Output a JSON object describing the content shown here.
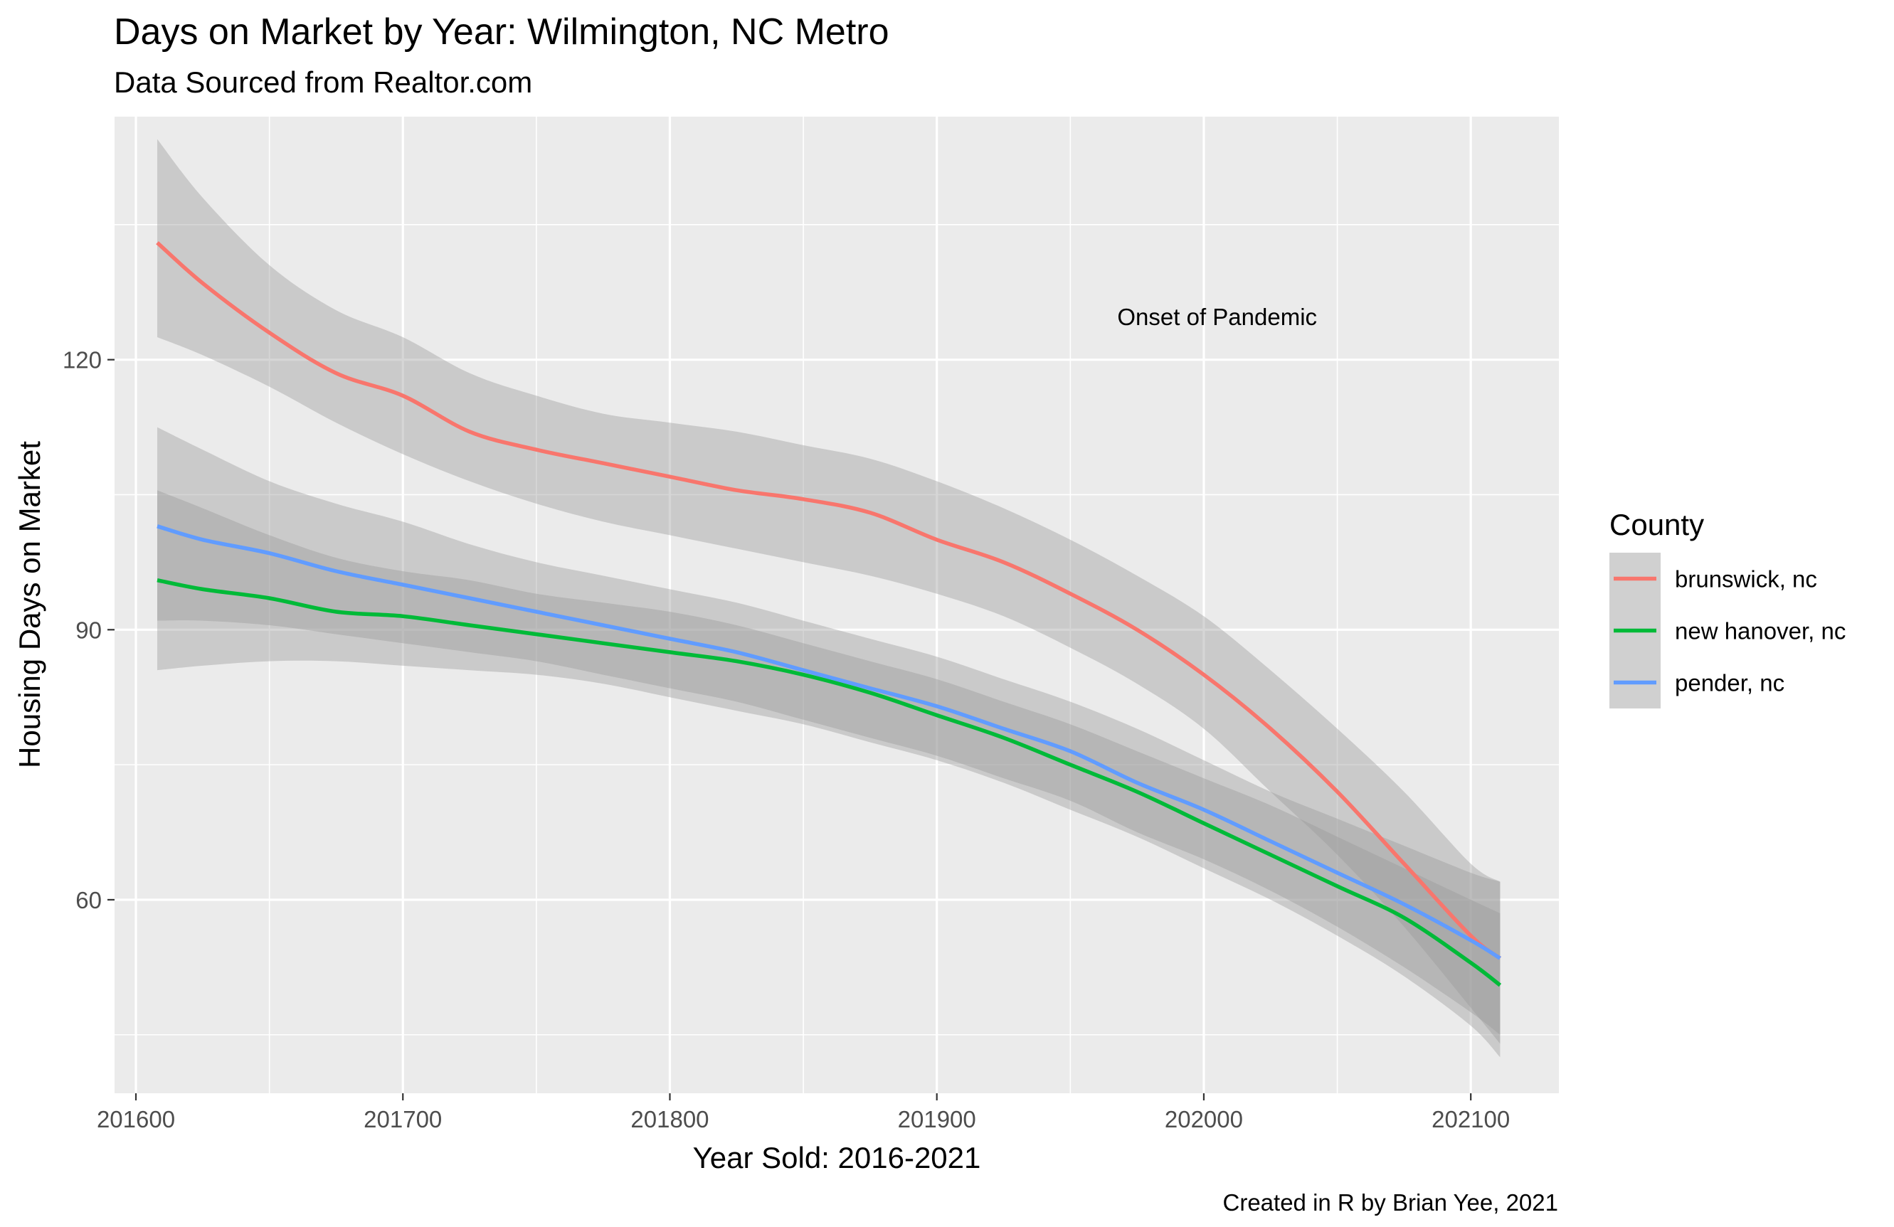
{
  "title": "Days on Market by Year: Wilmington, NC Metro",
  "subtitle": "Data Sourced from Realtor.com",
  "caption": "Created in R by Brian Yee, 2021",
  "chart_data": {
    "type": "line",
    "title": "Days on Market by Year: Wilmington, NC Metro",
    "subtitle": "Data Sourced from Realtor.com",
    "xlabel": "Year Sold: 2016-2021",
    "ylabel": "Housing Days on Market",
    "xlim": [
      201592,
      202133
    ],
    "ylim": [
      38.5,
      147
    ],
    "x_ticks": [
      201600,
      201700,
      201800,
      201900,
      202000,
      202100
    ],
    "x_tick_labels": [
      "201600",
      "201700",
      "201800",
      "201900",
      "202000",
      "202100"
    ],
    "y_ticks": [
      60,
      90,
      120
    ],
    "y_tick_labels": [
      "60",
      "90",
      "120"
    ],
    "grid": true,
    "background": "#EBEBEB",
    "legend": {
      "title": "County",
      "position": "right"
    },
    "annotation": {
      "text": "Onset of Pandemic",
      "x": 202005,
      "y": 124.7
    },
    "series": [
      {
        "name": "brunswick, nc",
        "color": "#F8766D",
        "points": [
          [
            201608,
            133
          ],
          [
            201625,
            128.5
          ],
          [
            201650,
            123
          ],
          [
            201675,
            118.5
          ],
          [
            201700,
            116
          ],
          [
            201725,
            112
          ],
          [
            201750,
            110
          ],
          [
            201775,
            108.5
          ],
          [
            201800,
            107
          ],
          [
            201825,
            105.5
          ],
          [
            201850,
            104.5
          ],
          [
            201875,
            103
          ],
          [
            201900,
            100
          ],
          [
            201925,
            97.5
          ],
          [
            201950,
            94
          ],
          [
            201975,
            90
          ],
          [
            202000,
            85
          ],
          [
            202025,
            79
          ],
          [
            202050,
            72
          ],
          [
            202075,
            64
          ],
          [
            202100,
            56
          ],
          [
            202111,
            53.5
          ]
        ],
        "lower": [
          [
            201608,
            122.5
          ],
          [
            201625,
            120.5
          ],
          [
            201650,
            117
          ],
          [
            201675,
            113
          ],
          [
            201700,
            109.5
          ],
          [
            201725,
            106.5
          ],
          [
            201750,
            104
          ],
          [
            201775,
            102
          ],
          [
            201800,
            100.5
          ],
          [
            201825,
            99
          ],
          [
            201850,
            97.5
          ],
          [
            201875,
            96
          ],
          [
            201900,
            94
          ],
          [
            201925,
            91.5
          ],
          [
            201950,
            88
          ],
          [
            201975,
            84
          ],
          [
            202000,
            79
          ],
          [
            202025,
            72
          ],
          [
            202050,
            65
          ],
          [
            202075,
            57
          ],
          [
            202100,
            48
          ],
          [
            202111,
            44
          ]
        ],
        "upper": [
          [
            201608,
            144.5
          ],
          [
            201625,
            138
          ],
          [
            201650,
            130.5
          ],
          [
            201675,
            125.5
          ],
          [
            201700,
            122.5
          ],
          [
            201725,
            118.5
          ],
          [
            201750,
            116
          ],
          [
            201775,
            114
          ],
          [
            201800,
            113
          ],
          [
            201825,
            112
          ],
          [
            201850,
            110.5
          ],
          [
            201875,
            109
          ],
          [
            201900,
            106.5
          ],
          [
            201925,
            103.5
          ],
          [
            201950,
            100
          ],
          [
            201975,
            96
          ],
          [
            202000,
            91.5
          ],
          [
            202025,
            85.5
          ],
          [
            202050,
            79
          ],
          [
            202075,
            72
          ],
          [
            202100,
            64
          ],
          [
            202111,
            62
          ]
        ]
      },
      {
        "name": "new hanover, nc",
        "color": "#00BA38",
        "points": [
          [
            201608,
            95.5
          ],
          [
            201625,
            94.5
          ],
          [
            201650,
            93.5
          ],
          [
            201675,
            92
          ],
          [
            201700,
            91.5
          ],
          [
            201725,
            90.5
          ],
          [
            201750,
            89.5
          ],
          [
            201775,
            88.5
          ],
          [
            201800,
            87.5
          ],
          [
            201825,
            86.5
          ],
          [
            201850,
            85
          ],
          [
            201875,
            83
          ],
          [
            201900,
            80.5
          ],
          [
            201925,
            78
          ],
          [
            201950,
            75
          ],
          [
            201975,
            72
          ],
          [
            202000,
            68.5
          ],
          [
            202025,
            65
          ],
          [
            202050,
            61.5
          ],
          [
            202075,
            58
          ],
          [
            202100,
            53
          ],
          [
            202111,
            50.5
          ]
        ],
        "lower": [
          [
            201608,
            85.5
          ],
          [
            201625,
            86
          ],
          [
            201650,
            86.5
          ],
          [
            201675,
            86.5
          ],
          [
            201700,
            86
          ],
          [
            201725,
            85.5
          ],
          [
            201750,
            85
          ],
          [
            201775,
            84
          ],
          [
            201800,
            82.5
          ],
          [
            201825,
            81
          ],
          [
            201850,
            79.5
          ],
          [
            201875,
            77.5
          ],
          [
            201900,
            75.5
          ],
          [
            201925,
            73
          ],
          [
            201950,
            70
          ],
          [
            201975,
            67
          ],
          [
            202000,
            63.5
          ],
          [
            202025,
            60
          ],
          [
            202050,
            56
          ],
          [
            202075,
            51.5
          ],
          [
            202100,
            46
          ],
          [
            202111,
            42.5
          ]
        ],
        "upper": [
          [
            201608,
            105.5
          ],
          [
            201625,
            103.5
          ],
          [
            201650,
            100.5
          ],
          [
            201675,
            98
          ],
          [
            201700,
            96.5
          ],
          [
            201725,
            95.5
          ],
          [
            201750,
            94
          ],
          [
            201775,
            93
          ],
          [
            201800,
            92
          ],
          [
            201825,
            90.5
          ],
          [
            201850,
            88.5
          ],
          [
            201875,
            86.5
          ],
          [
            201900,
            84.5
          ],
          [
            201925,
            82
          ],
          [
            201950,
            79.5
          ],
          [
            201975,
            76.5
          ],
          [
            202000,
            73.5
          ],
          [
            202025,
            70.5
          ],
          [
            202050,
            67
          ],
          [
            202075,
            63.5
          ],
          [
            202100,
            60
          ],
          [
            202111,
            58.5
          ]
        ]
      },
      {
        "name": "pender, nc",
        "color": "#619CFF",
        "points": [
          [
            201608,
            101.5
          ],
          [
            201625,
            100
          ],
          [
            201650,
            98.5
          ],
          [
            201675,
            96.5
          ],
          [
            201700,
            95
          ],
          [
            201725,
            93.5
          ],
          [
            201750,
            92
          ],
          [
            201775,
            90.5
          ],
          [
            201800,
            89
          ],
          [
            201825,
            87.5
          ],
          [
            201850,
            85.5
          ],
          [
            201875,
            83.5
          ],
          [
            201900,
            81.5
          ],
          [
            201925,
            79
          ],
          [
            201950,
            76.5
          ],
          [
            201975,
            73
          ],
          [
            202000,
            70
          ],
          [
            202025,
            66.5
          ],
          [
            202050,
            63
          ],
          [
            202075,
            59.5
          ],
          [
            202100,
            55.5
          ],
          [
            202111,
            53.5
          ]
        ],
        "lower": [
          [
            201608,
            91
          ],
          [
            201625,
            91
          ],
          [
            201650,
            90.5
          ],
          [
            201675,
            89.5
          ],
          [
            201700,
            88.5
          ],
          [
            201725,
            87.5
          ],
          [
            201750,
            86.5
          ],
          [
            201775,
            85
          ],
          [
            201800,
            83.5
          ],
          [
            201825,
            82
          ],
          [
            201850,
            80
          ],
          [
            201875,
            78
          ],
          [
            201900,
            76
          ],
          [
            201925,
            73.5
          ],
          [
            201950,
            71
          ],
          [
            201975,
            67.5
          ],
          [
            202000,
            64.5
          ],
          [
            202025,
            61
          ],
          [
            202050,
            57
          ],
          [
            202075,
            52.5
          ],
          [
            202100,
            47.5
          ],
          [
            202111,
            45
          ]
        ],
        "upper": [
          [
            201608,
            112.5
          ],
          [
            201625,
            110
          ],
          [
            201650,
            106.5
          ],
          [
            201675,
            104
          ],
          [
            201700,
            102
          ],
          [
            201725,
            99.5
          ],
          [
            201750,
            97.5
          ],
          [
            201775,
            96
          ],
          [
            201800,
            94.5
          ],
          [
            201825,
            93
          ],
          [
            201850,
            91
          ],
          [
            201875,
            89
          ],
          [
            201900,
            87
          ],
          [
            201925,
            84.5
          ],
          [
            201950,
            82
          ],
          [
            201975,
            79
          ],
          [
            202000,
            75.5
          ],
          [
            202025,
            72
          ],
          [
            202050,
            69
          ],
          [
            202075,
            66
          ],
          [
            202100,
            63
          ],
          [
            202111,
            62
          ]
        ]
      }
    ]
  }
}
